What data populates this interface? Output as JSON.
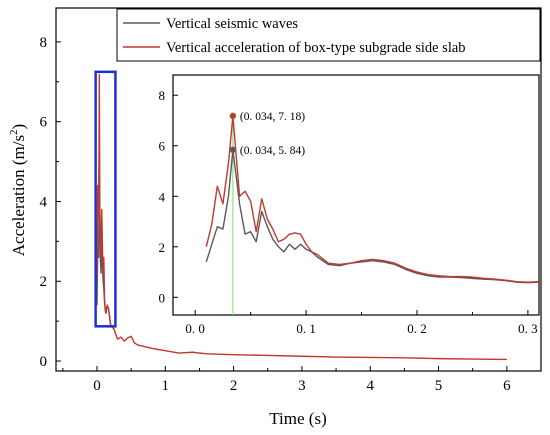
{
  "colors": {
    "seismic": "#5a5a5a",
    "slab": "#c0392b",
    "highlight_box": "#1f2fd0",
    "marker_line": "#7ddc6a",
    "axis": "#000000"
  },
  "chart_data": [
    {
      "type": "line",
      "role": "main",
      "xlabel": "Time (s)",
      "ylabel_main": "Acceleration (m/s",
      "ylabel_sup": "2",
      "ylabel_end": ")",
      "xlim": [
        -0.6,
        6.5
      ],
      "ylim": [
        -0.25,
        8.85
      ],
      "xticks": [
        0,
        1,
        2,
        3,
        4,
        5,
        6
      ],
      "yticks": [
        0,
        2,
        4,
        6,
        8
      ],
      "highlight_box": {
        "x": [
          -0.02,
          0.27
        ],
        "y": [
          0.87,
          7.25
        ]
      },
      "legend": {
        "position": "top-right",
        "entries": [
          "Vertical seismic waves",
          "Vertical acceleration of box-type subgrade side slab"
        ]
      },
      "series": [
        {
          "name": "Vertical seismic waves",
          "color_key": "seismic",
          "x": [
            0.0,
            0.01,
            0.02,
            0.025,
            0.03,
            0.034,
            0.04,
            0.05,
            0.06,
            0.07,
            0.08,
            0.09,
            0.1,
            0.11,
            0.12,
            0.13,
            0.14,
            0.15,
            0.17,
            0.2,
            0.25
          ],
          "y": [
            1.4,
            2.8,
            2.7,
            2.6,
            4.2,
            5.84,
            3.8,
            2.5,
            2.2,
            3.4,
            2.4,
            2.0,
            1.8,
            1.5,
            1.3,
            1.2,
            1.3,
            1.4,
            1.3,
            0.9,
            0.8
          ]
        },
        {
          "name": "Vertical acceleration of box-type subgrade side slab",
          "color_key": "slab",
          "x": [
            0.0,
            0.01,
            0.02,
            0.025,
            0.03,
            0.034,
            0.04,
            0.05,
            0.06,
            0.07,
            0.08,
            0.09,
            0.1,
            0.11,
            0.12,
            0.13,
            0.14,
            0.15,
            0.17,
            0.2,
            0.25,
            0.3,
            0.35,
            0.4,
            0.45,
            0.5,
            0.55,
            0.6,
            0.8,
            1.0,
            1.2,
            1.4,
            1.6,
            2.0,
            2.5,
            3.0,
            3.5,
            4.0,
            4.5,
            5.0,
            5.5,
            6.0
          ],
          "y": [
            2.0,
            4.4,
            3.6,
            4.3,
            5.2,
            7.18,
            4.0,
            3.0,
            2.6,
            3.8,
            2.8,
            2.2,
            2.6,
            1.6,
            1.3,
            1.2,
            1.3,
            1.4,
            1.3,
            0.9,
            0.8,
            0.55,
            0.6,
            0.5,
            0.58,
            0.62,
            0.45,
            0.4,
            0.32,
            0.26,
            0.2,
            0.22,
            0.18,
            0.16,
            0.14,
            0.12,
            0.1,
            0.09,
            0.08,
            0.06,
            0.05,
            0.04
          ]
        }
      ]
    },
    {
      "type": "line",
      "role": "inset",
      "xlim": [
        -0.02,
        0.31
      ],
      "ylim": [
        -0.7,
        8.8
      ],
      "xticks": [
        0.0,
        0.1,
        0.2,
        0.3
      ],
      "xtick_labels": [
        "0. 0",
        "0. 1",
        "0. 2",
        "0. 3"
      ],
      "yticks": [
        0,
        2,
        4,
        6,
        8
      ],
      "marker_x": 0.034,
      "annotations": [
        {
          "x": 0.034,
          "y": 7.18,
          "label": "(0. 034, 7. 18)",
          "color_key": "slab"
        },
        {
          "x": 0.034,
          "y": 5.84,
          "label": "(0. 034, 5. 84)",
          "color_key": "seismic"
        }
      ],
      "series": [
        {
          "name": "Vertical seismic waves",
          "color_key": "seismic",
          "x": [
            0.01,
            0.02,
            0.025,
            0.03,
            0.034,
            0.04,
            0.045,
            0.05,
            0.055,
            0.06,
            0.065,
            0.07,
            0.075,
            0.08,
            0.085,
            0.09,
            0.095,
            0.1,
            0.105,
            0.11,
            0.12,
            0.13,
            0.14,
            0.15,
            0.16,
            0.17,
            0.18,
            0.19,
            0.2,
            0.21,
            0.22,
            0.23,
            0.24,
            0.25,
            0.26,
            0.27,
            0.28,
            0.29,
            0.3,
            0.31
          ],
          "y": [
            1.4,
            2.8,
            2.7,
            4.0,
            5.84,
            3.7,
            2.5,
            2.6,
            2.2,
            3.4,
            2.8,
            2.3,
            2.0,
            1.8,
            2.1,
            1.9,
            2.1,
            1.9,
            1.8,
            1.6,
            1.3,
            1.25,
            1.35,
            1.4,
            1.45,
            1.4,
            1.3,
            1.1,
            0.95,
            0.85,
            0.8,
            0.8,
            0.78,
            0.75,
            0.72,
            0.7,
            0.66,
            0.6,
            0.58,
            0.6
          ]
        },
        {
          "name": "Vertical acceleration of box-type subgrade side slab",
          "color_key": "slab",
          "x": [
            0.01,
            0.015,
            0.02,
            0.025,
            0.03,
            0.034,
            0.04,
            0.045,
            0.05,
            0.055,
            0.06,
            0.065,
            0.07,
            0.075,
            0.08,
            0.085,
            0.09,
            0.095,
            0.1,
            0.105,
            0.11,
            0.12,
            0.13,
            0.14,
            0.15,
            0.16,
            0.17,
            0.18,
            0.19,
            0.2,
            0.21,
            0.22,
            0.23,
            0.24,
            0.25,
            0.26,
            0.27,
            0.28,
            0.29,
            0.3,
            0.31
          ],
          "y": [
            2.0,
            2.9,
            4.4,
            3.7,
            5.3,
            7.18,
            4.0,
            4.2,
            3.8,
            2.6,
            3.9,
            3.1,
            2.7,
            2.2,
            2.3,
            2.5,
            2.55,
            2.5,
            2.1,
            1.8,
            1.7,
            1.35,
            1.3,
            1.35,
            1.45,
            1.5,
            1.45,
            1.35,
            1.15,
            1.0,
            0.9,
            0.85,
            0.82,
            0.82,
            0.8,
            0.75,
            0.72,
            0.68,
            0.62,
            0.6,
            0.62
          ]
        }
      ]
    }
  ]
}
